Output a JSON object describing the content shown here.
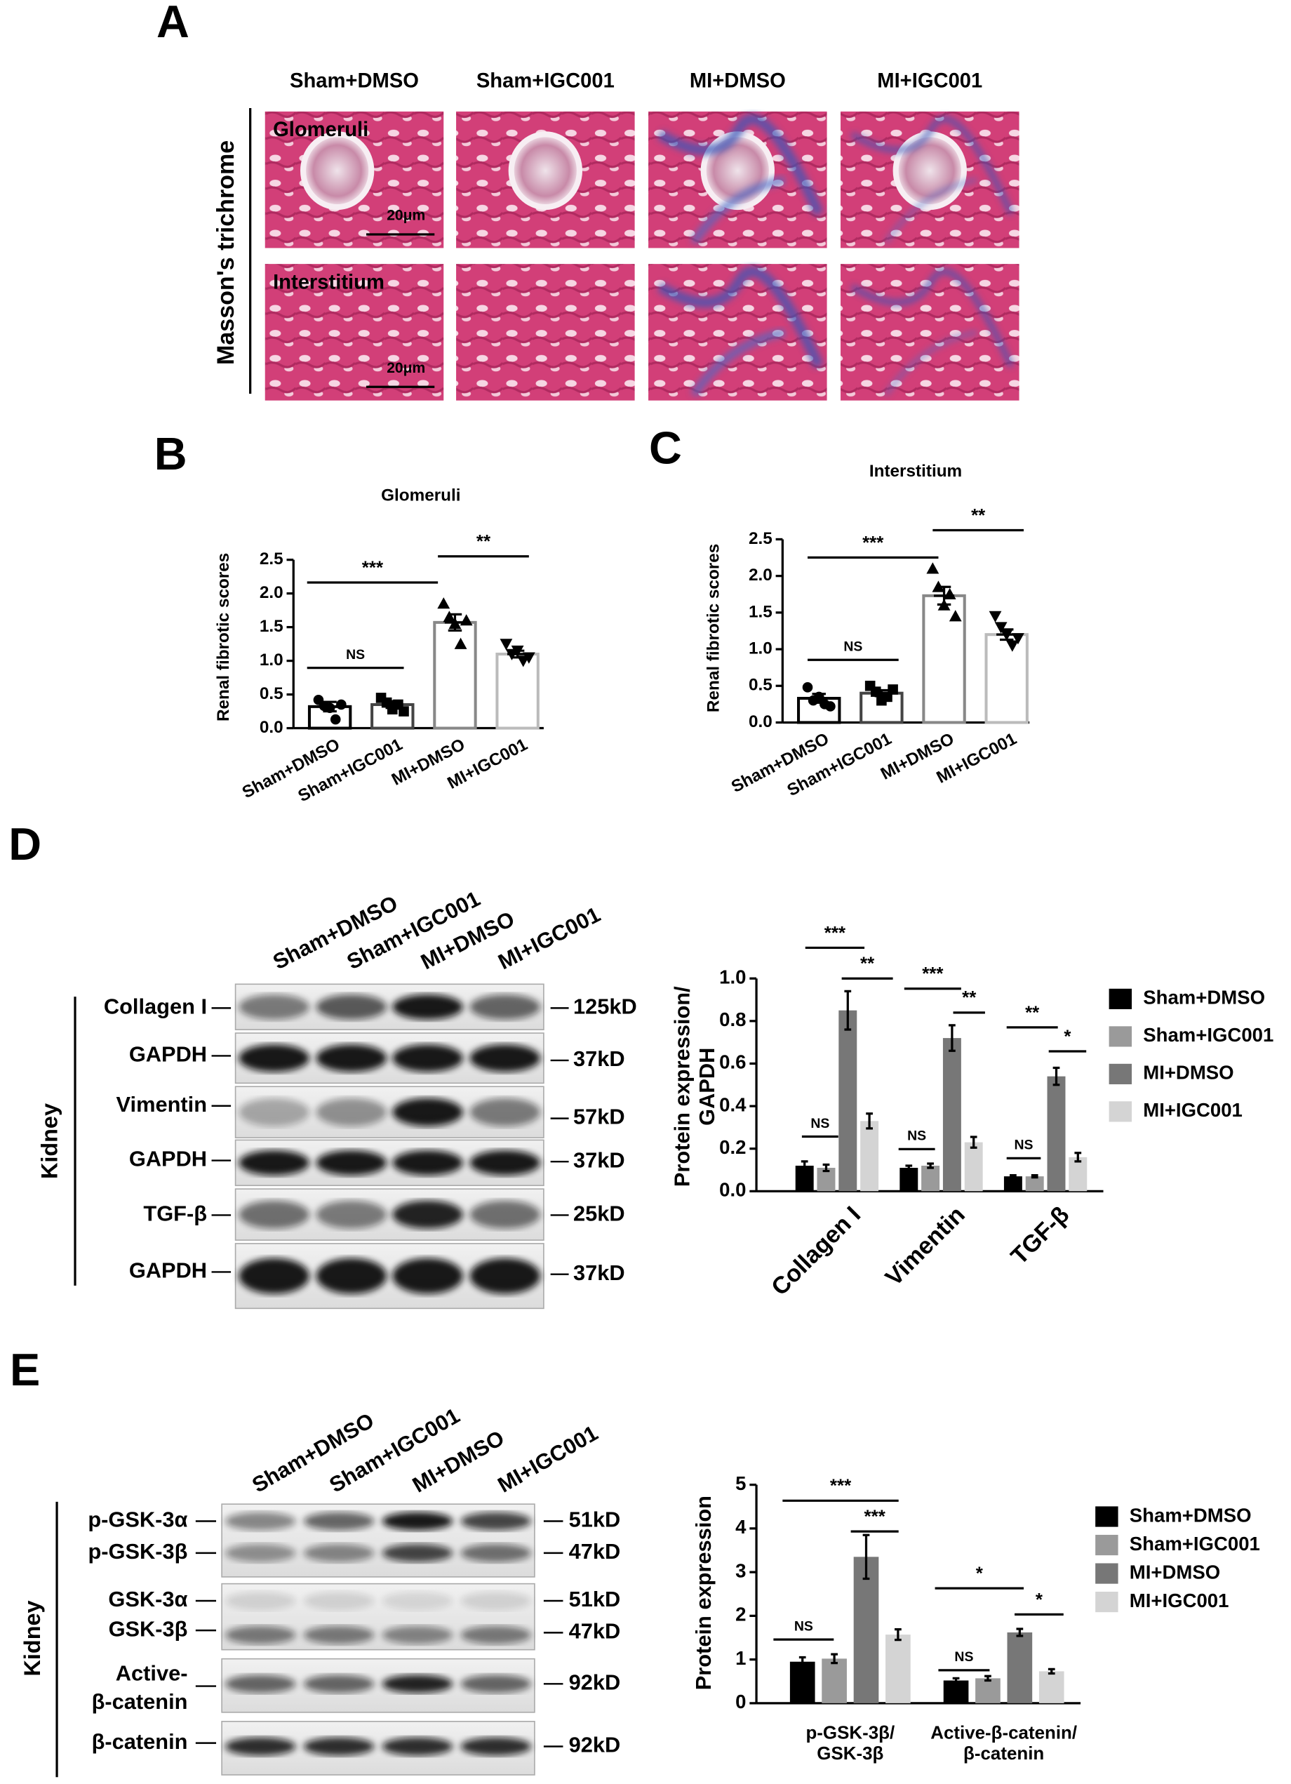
{
  "figure": {
    "panel_letters": [
      "A",
      "B",
      "C",
      "D",
      "E"
    ]
  },
  "panel_a": {
    "columns": [
      "Sham+DMSO",
      "Sham+IGC001",
      "MI+DMSO",
      "MI+IGC001"
    ],
    "stain": "Masson's trichrome",
    "rows": [
      "Glomeruli",
      "Interstitium"
    ],
    "scale_bar": "20μm"
  },
  "blot_d": {
    "lanes": [
      "Sham+DMSO",
      "Sham+IGC001",
      "MI+DMSO",
      "MI+IGC001"
    ],
    "tissue": "Kidney",
    "proteins": [
      "Collagen I",
      "GAPDH",
      "Vimentin",
      "GAPDH",
      "TGF-β",
      "GAPDH"
    ],
    "sizes": [
      "125kD",
      "37kD",
      "57kD",
      "37kD",
      "25kD",
      "37kD"
    ]
  },
  "blot_e": {
    "lanes": [
      "Sham+DMSO",
      "Sham+IGC001",
      "MI+DMSO",
      "MI+IGC001"
    ],
    "tissue": "Kidney",
    "rows": [
      {
        "labels": [
          "p-GSK-3α",
          "p-GSK-3β"
        ],
        "sizes": [
          "51kD",
          "47kD"
        ]
      },
      {
        "labels": [
          "GSK-3α",
          "GSK-3β"
        ],
        "sizes": [
          "51kD",
          "47kD"
        ]
      },
      {
        "labels": [
          "Active-",
          "β-catenin"
        ],
        "sizes": [
          "92kD"
        ]
      },
      {
        "labels": [
          "β-catenin"
        ],
        "sizes": [
          "92kD"
        ]
      }
    ]
  },
  "chart_data": [
    {
      "type": "bar",
      "title": "Glomeruli",
      "y_label": "Renal fibrotic scores",
      "categories": [
        "Sham+DMSO",
        "Sham+IGC001",
        "MI+DMSO",
        "MI+IGC001"
      ],
      "values": [
        0.32,
        0.35,
        1.57,
        1.1
      ],
      "errors": [
        0.07,
        0.05,
        0.12,
        0.05
      ],
      "points": [
        [
          0.42,
          0.33,
          0.3,
          0.13,
          0.35
        ],
        [
          0.45,
          0.38,
          0.28,
          0.35,
          0.25
        ],
        [
          1.85,
          1.65,
          1.55,
          1.25,
          1.6
        ],
        [
          1.25,
          1.1,
          1.15,
          1.0,
          1.05
        ]
      ],
      "markers": [
        "circle",
        "square",
        "triangle-up",
        "triangle-down"
      ],
      "colors": [
        "#000000",
        "#444444",
        "#888888",
        "#bbbbbb"
      ],
      "point_color": "#000000",
      "ylim": [
        0,
        2.5
      ],
      "yticks": [
        {
          "value": 0,
          "label": "0.0"
        },
        0.5,
        {
          "value": 1,
          "label": "1.0"
        },
        1.5,
        {
          "value": 2,
          "label": "2.0"
        },
        2.5
      ],
      "annotations": [
        "***",
        "**",
        "NS"
      ]
    },
    {
      "type": "bar",
      "title": "Interstitium",
      "y_label": "Renal fibrotic scores",
      "categories": [
        "Sham+DMSO",
        "Sham+IGC001",
        "MI+DMSO",
        "MI+IGC001"
      ],
      "values": [
        0.33,
        0.4,
        1.73,
        1.2
      ],
      "errors": [
        0.06,
        0.04,
        0.12,
        0.07
      ],
      "points": [
        [
          0.48,
          0.3,
          0.35,
          0.25,
          0.22
        ],
        [
          0.5,
          0.42,
          0.3,
          0.35,
          0.45
        ],
        [
          2.1,
          1.85,
          1.6,
          1.75,
          1.45
        ],
        [
          1.45,
          1.3,
          1.2,
          1.05,
          1.15
        ]
      ],
      "markers": [
        "circle",
        "square",
        "triangle-up",
        "triangle-down"
      ],
      "colors": [
        "#000000",
        "#444444",
        "#888888",
        "#bbbbbb"
      ],
      "point_color": "#000000",
      "ylim": [
        0,
        2.5
      ],
      "yticks": [
        {
          "value": 0,
          "label": "0.0"
        },
        0.5,
        {
          "value": 1,
          "label": "1.0"
        },
        1.5,
        {
          "value": 2,
          "label": "2.0"
        },
        2.5
      ],
      "annotations": [
        "***",
        "**",
        "NS"
      ]
    },
    {
      "type": "grouped_bar",
      "y_label": "Protein expression/\nGAPDH",
      "categories": [
        "Collagen I",
        "Vimentin",
        "TGF-β"
      ],
      "series": [
        {
          "name": "Sham+DMSO",
          "color": "#000000",
          "values": [
            0.12,
            0.11,
            0.07
          ],
          "errors": [
            0.02,
            0.01,
            0.005
          ]
        },
        {
          "name": "Sham+IGC001",
          "color": "#9a9a9a",
          "values": [
            0.11,
            0.12,
            0.07
          ],
          "errors": [
            0.015,
            0.01,
            0.005
          ]
        },
        {
          "name": "MI+DMSO",
          "color": "#777777",
          "values": [
            0.85,
            0.72,
            0.54
          ],
          "errors": [
            0.09,
            0.06,
            0.04
          ]
        },
        {
          "name": "MI+IGC001",
          "color": "#d4d4d4",
          "values": [
            0.33,
            0.23,
            0.16
          ],
          "errors": [
            0.035,
            0.025,
            0.02
          ]
        }
      ],
      "ylim": [
        0,
        1
      ],
      "yticks": [
        {
          "value": 0,
          "label": "0.0"
        },
        0.2,
        0.4,
        0.6,
        0.8,
        {
          "value": 1,
          "label": "1.0"
        }
      ],
      "annotations": [
        "***",
        "**",
        "NS",
        "***",
        "**",
        "NS",
        "**",
        "*",
        "NS"
      ]
    },
    {
      "type": "grouped_bar",
      "y_label": "Protein expression",
      "categories": [
        "p-GSK-3β/\nGSK-3β",
        "Active-β-catenin/\nβ-catenin"
      ],
      "series": [
        {
          "name": "Sham+DMSO",
          "color": "#000000",
          "values": [
            0.95,
            0.52
          ],
          "errors": [
            0.1,
            0.05
          ]
        },
        {
          "name": "Sham+IGC001",
          "color": "#9a9a9a",
          "values": [
            1.02,
            0.57
          ],
          "errors": [
            0.1,
            0.05
          ]
        },
        {
          "name": "MI+DMSO",
          "color": "#777777",
          "values": [
            3.35,
            1.62
          ],
          "errors": [
            0.5,
            0.08
          ]
        },
        {
          "name": "MI+IGC001",
          "color": "#d4d4d4",
          "values": [
            1.57,
            0.73
          ],
          "errors": [
            0.12,
            0.05
          ]
        }
      ],
      "ylim": [
        0,
        5
      ],
      "yticks": [
        0,
        1,
        2,
        3,
        4,
        5
      ],
      "annotations": [
        "***",
        "***",
        "NS",
        "*",
        "*",
        "NS"
      ]
    }
  ]
}
